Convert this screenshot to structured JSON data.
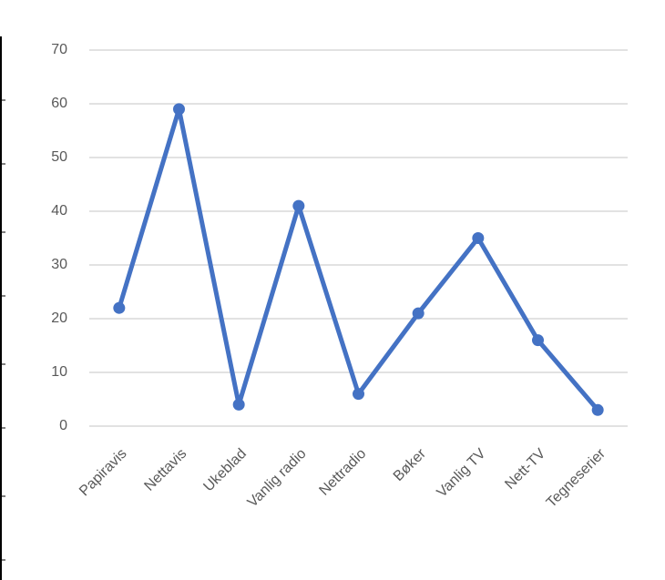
{
  "chart_data": {
    "type": "line",
    "categories": [
      "Papiravis",
      "Nettavis",
      "Ukeblad",
      "Vanlig radio",
      "Nettradio",
      "Bøker",
      "Vanlig TV",
      "Nett-TV",
      "Tegneserier"
    ],
    "series": [
      {
        "name": null,
        "color": "#4472c4",
        "values": [
          22,
          59,
          4,
          41,
          6,
          21,
          35,
          16,
          3
        ]
      }
    ],
    "ylim": [
      0,
      70
    ],
    "yticks": [
      0,
      10,
      20,
      30,
      40,
      50,
      60,
      70
    ],
    "grid": true
  }
}
